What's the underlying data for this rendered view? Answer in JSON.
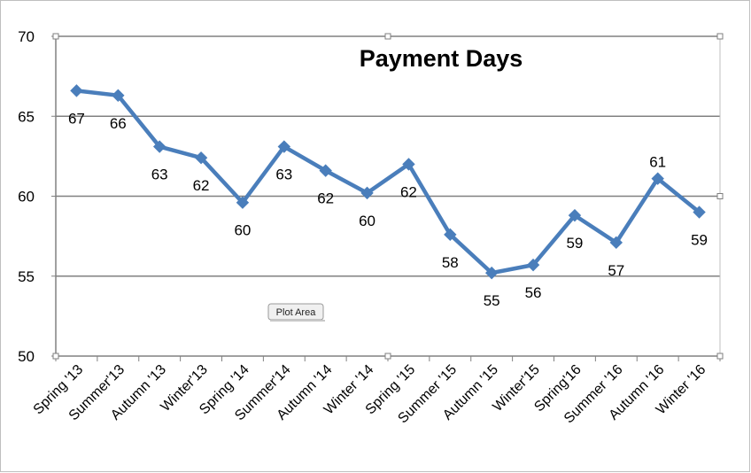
{
  "chart_data": {
    "type": "line",
    "title": "Payment Days",
    "xlabel": "",
    "ylabel": "",
    "ylim": [
      50,
      70
    ],
    "yticks": [
      50,
      55,
      60,
      65,
      70
    ],
    "grid": true,
    "legend": "none",
    "categories": [
      "Spring '13",
      "Summer'13",
      "Autumn '13",
      "Winter'13",
      "Spring '14",
      "Summer'14",
      "Autumn '14",
      "Winter '14",
      "Spring '15",
      "Summer '15",
      "Autumn '15",
      "Winter'15",
      "Spring'16",
      "Summer '16",
      "Autumn '16",
      "Winter '16"
    ],
    "series": [
      {
        "values": [
          66.6,
          66.3,
          63.1,
          62.4,
          59.6,
          63.1,
          61.6,
          60.2,
          62.0,
          57.6,
          55.2,
          55.7,
          58.8,
          57.1,
          61.1,
          59.0
        ],
        "labels": [
          "67",
          "66",
          "63",
          "62",
          "60",
          "63",
          "62",
          "60",
          "62",
          "58",
          "55",
          "56",
          "59",
          "57",
          "61",
          "59"
        ],
        "label_position": [
          "below",
          "below",
          "below",
          "below",
          "below",
          "below",
          "below",
          "below",
          "below",
          "below",
          "below",
          "below",
          "below",
          "below",
          "above",
          "below"
        ],
        "color": "#4a7ebb"
      }
    ]
  },
  "tooltip": {
    "text": "Plot Area"
  },
  "colors": {
    "line": "#4a7ebb",
    "grid": "#808080",
    "axis": "#808080",
    "border": "#bfbfbf"
  }
}
